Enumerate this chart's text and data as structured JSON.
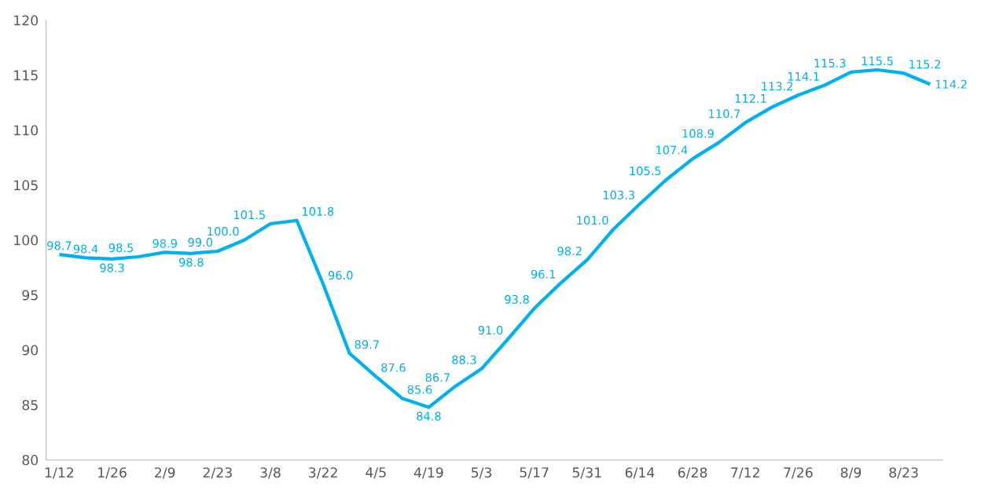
{
  "chart_data": {
    "type": "line",
    "categories": [
      "1/12",
      null,
      "1/26",
      null,
      "2/9",
      null,
      "2/23",
      null,
      "3/8",
      null,
      "3/22",
      null,
      "4/5",
      null,
      "4/19",
      null,
      "5/3",
      null,
      "5/17",
      null,
      "5/31",
      null,
      "6/14",
      null,
      "6/28",
      null,
      "7/12",
      null,
      "7/26",
      null,
      "8/9",
      null,
      "8/23",
      null
    ],
    "values": [
      98.7,
      98.4,
      98.3,
      98.5,
      98.9,
      98.8,
      99.0,
      100.0,
      101.5,
      101.8,
      96.0,
      89.7,
      87.6,
      85.6,
      84.8,
      86.7,
      88.3,
      91.0,
      93.8,
      96.1,
      98.2,
      101.0,
      103.3,
      105.5,
      107.4,
      108.9,
      110.7,
      112.1,
      113.2,
      114.1,
      115.3,
      115.5,
      115.2,
      114.2
    ],
    "value_labels": [
      "98.7",
      "98.4",
      "98.3",
      "98.5",
      "98.9",
      "98.8",
      "99.0",
      "100.0",
      "101.5",
      "101.8",
      "96.0",
      "89.7",
      "87.6",
      "85.6",
      "84.8",
      "86.7",
      "88.3",
      "91.0",
      "93.8",
      "96.1",
      "98.2",
      "101.0",
      "103.3",
      "105.5",
      "107.4",
      "108.9",
      "110.7",
      "112.1",
      "113.2",
      "114.1",
      "115.3",
      "115.5",
      "115.2",
      "114.2"
    ],
    "color": "#00b0f0",
    "ylim": [
      80,
      120
    ],
    "yticks": [
      80,
      85,
      90,
      95,
      100,
      105,
      110,
      115,
      120
    ],
    "marker": "none",
    "line_style": "solid"
  }
}
